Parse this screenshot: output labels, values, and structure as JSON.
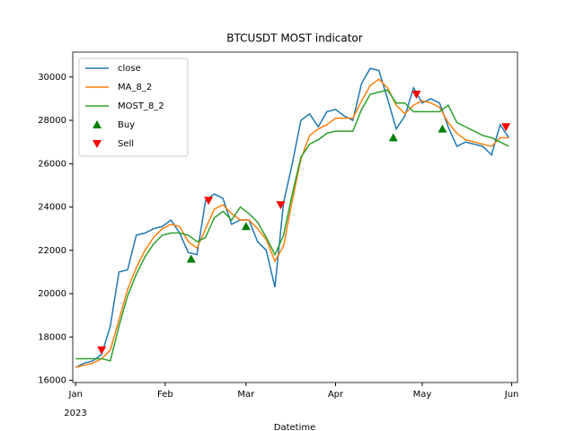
{
  "chart_data": {
    "type": "line",
    "title": "BTCUSDT MOST indicator",
    "x_label": "Datetime",
    "x_offset_label": "2023",
    "x": [
      "2023-01-01",
      "2023-01-04",
      "2023-01-07",
      "2023-01-10",
      "2023-01-13",
      "2023-01-16",
      "2023-01-19",
      "2023-01-22",
      "2023-01-25",
      "2023-01-28",
      "2023-01-31",
      "2023-02-03",
      "2023-02-06",
      "2023-02-09",
      "2023-02-12",
      "2023-02-15",
      "2023-02-18",
      "2023-02-21",
      "2023-02-24",
      "2023-02-27",
      "2023-03-02",
      "2023-03-05",
      "2023-03-08",
      "2023-03-11",
      "2023-03-14",
      "2023-03-17",
      "2023-03-20",
      "2023-03-23",
      "2023-03-26",
      "2023-03-29",
      "2023-04-01",
      "2023-04-04",
      "2023-04-07",
      "2023-04-10",
      "2023-04-13",
      "2023-04-16",
      "2023-04-19",
      "2023-04-22",
      "2023-04-25",
      "2023-04-28",
      "2023-05-01",
      "2023-05-04",
      "2023-05-07",
      "2023-05-10",
      "2023-05-13",
      "2023-05-16",
      "2023-05-19",
      "2023-05-22",
      "2023-05-25",
      "2023-05-28",
      "2023-05-31"
    ],
    "series": [
      {
        "name": "close",
        "color": "#1f77b4",
        "values": [
          16600,
          16800,
          16900,
          17200,
          18500,
          21000,
          21100,
          22700,
          22800,
          23000,
          23100,
          23400,
          22800,
          21900,
          21800,
          24300,
          24600,
          24400,
          23200,
          23400,
          23400,
          22400,
          22000,
          20300,
          24200,
          26000,
          28000,
          28300,
          27700,
          28400,
          28500,
          28200,
          28000,
          29700,
          30400,
          30300,
          29000,
          27600,
          28200,
          29500,
          28800,
          29000,
          28800,
          27700,
          26800,
          27000,
          26900,
          26800,
          26400,
          27800,
          27200
        ]
      },
      {
        "name": "MA_8_2",
        "color": "#ff7f0e",
        "values": [
          16600,
          16700,
          16800,
          17000,
          17400,
          18800,
          20200,
          21200,
          22000,
          22600,
          23000,
          23200,
          23100,
          22400,
          22100,
          23000,
          23900,
          24100,
          23700,
          23400,
          23400,
          23000,
          22500,
          21500,
          22200,
          24300,
          26200,
          27300,
          27600,
          27800,
          28100,
          28100,
          28100,
          28900,
          29600,
          29900,
          29500,
          28700,
          28300,
          28700,
          28900,
          28800,
          28600,
          27900,
          27400,
          27100,
          27000,
          26900,
          26800,
          27200,
          27200
        ]
      },
      {
        "name": "MOST_8_2",
        "color": "#2ca02c",
        "values": [
          17000,
          17000,
          17000,
          17000,
          16900,
          18500,
          19900,
          20900,
          21700,
          22300,
          22700,
          22800,
          22800,
          22700,
          22400,
          22600,
          23500,
          23800,
          23400,
          24000,
          23700,
          23300,
          22600,
          21800,
          22700,
          24600,
          26300,
          26900,
          27100,
          27400,
          27500,
          27500,
          27500,
          28500,
          29200,
          29300,
          29400,
          28800,
          28800,
          28400,
          28400,
          28400,
          28400,
          28700,
          27900,
          27700,
          27500,
          27300,
          27200,
          27000,
          26800
        ]
      },
      {
        "name": "Buy",
        "color": "green",
        "marker": "^",
        "x": [
          "2023-02-10",
          "2023-03-01",
          "2023-04-21",
          "2023-05-08"
        ],
        "values": [
          21600,
          23100,
          27200,
          27600
        ]
      },
      {
        "name": "Sell",
        "color": "red",
        "marker": "v",
        "x": [
          "2023-01-10",
          "2023-02-16",
          "2023-03-13",
          "2023-04-29",
          "2023-05-30"
        ],
        "values": [
          17400,
          24300,
          24100,
          29200,
          27700
        ]
      }
    ],
    "xlim": [
      "2022-12-31",
      "2023-06-03"
    ],
    "xticks": [
      {
        "value": "2023-01-01",
        "label": "Jan"
      },
      {
        "value": "2023-02-01",
        "label": "Feb"
      },
      {
        "value": "2023-03-01",
        "label": "Mar"
      },
      {
        "value": "2023-04-01",
        "label": "Apr"
      },
      {
        "value": "2023-05-01",
        "label": "May"
      },
      {
        "value": "2023-06-01",
        "label": "Jun"
      }
    ],
    "ylim": [
      15900,
      31150
    ],
    "yticks": [
      16000,
      18000,
      20000,
      22000,
      24000,
      26000,
      28000,
      30000
    ],
    "legend": "upper left"
  }
}
